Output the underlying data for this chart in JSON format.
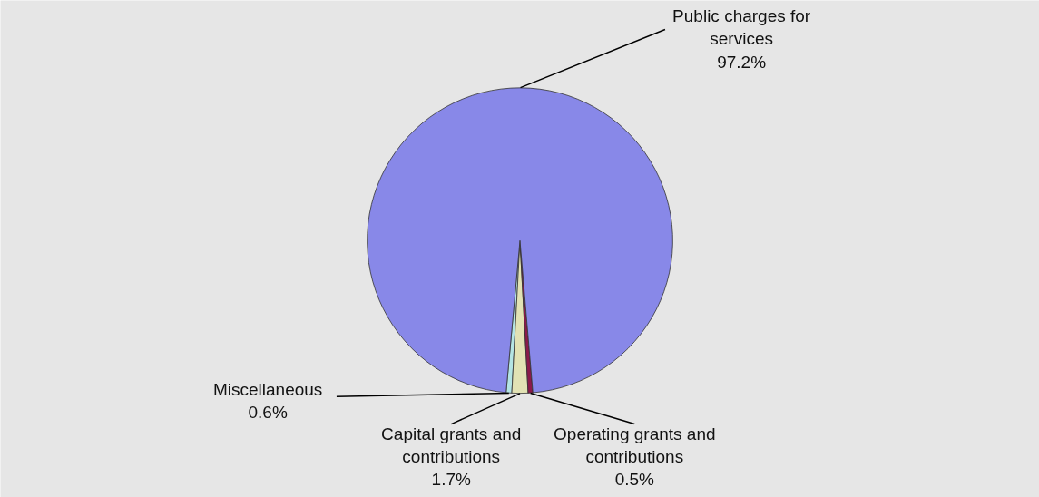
{
  "chart_data": {
    "type": "pie",
    "categories": [
      "Miscellaneous",
      "Capital grants and contributions",
      "Operating grants and contributions",
      "Public charges for services"
    ],
    "values": [
      0.6,
      1.7,
      0.5,
      97.2
    ],
    "colors": [
      "#b4e4e4",
      "#e2e2b4",
      "#8b1a4a",
      "#8888e8"
    ],
    "value_labels": [
      "0.6%",
      "1.7%",
      "0.5%",
      "97.2%"
    ]
  }
}
